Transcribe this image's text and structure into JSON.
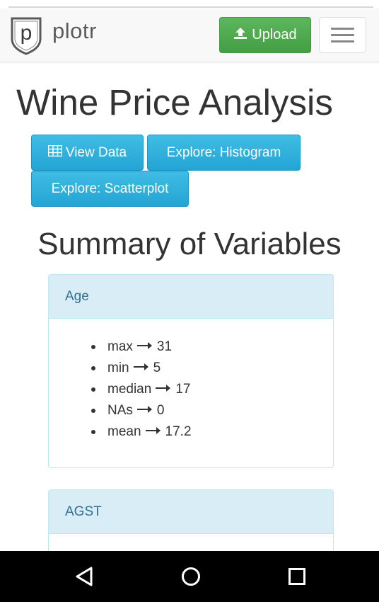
{
  "app": {
    "brand_name": "plotr",
    "brand_letter": "p",
    "upload_label": "Upload"
  },
  "page": {
    "title": "Wine Price Analysis",
    "actions": [
      {
        "label": "View Data",
        "icon": "table-icon"
      },
      {
        "label": "Explore: Histogram"
      },
      {
        "label": "Explore: Scatterplot"
      }
    ],
    "section_title": "Summary of Variables"
  },
  "variables": [
    {
      "name": "Age",
      "stats": [
        {
          "label": "max",
          "value": "31"
        },
        {
          "label": "min",
          "value": "5"
        },
        {
          "label": "median",
          "value": "17"
        },
        {
          "label": "NAs",
          "value": "0"
        },
        {
          "label": "mean",
          "value": "17.2"
        }
      ]
    },
    {
      "name": "AGST",
      "stats": []
    }
  ],
  "colors": {
    "success": "#5cb85c",
    "info": "#2ab1dd",
    "panel_heading_bg": "#d9edf7",
    "panel_heading_text": "#31708f",
    "panel_border": "#bce8f1"
  },
  "system_nav": {
    "back_icon": "back-triangle-icon",
    "home_icon": "home-circle-icon",
    "recents_icon": "recents-square-icon"
  }
}
